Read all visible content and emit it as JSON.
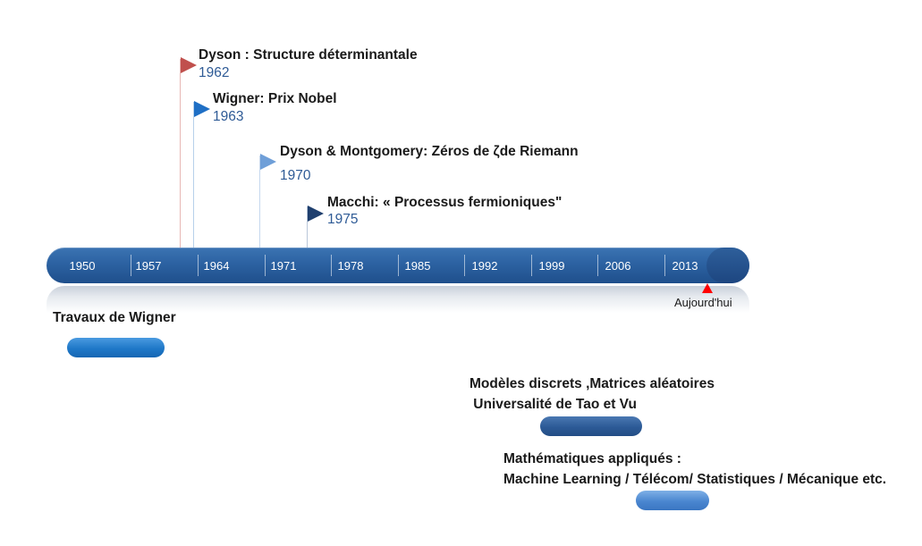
{
  "events": [
    {
      "title": "Dyson : Structure déterminantale",
      "year": "1962",
      "flag_color": "#c0504d"
    },
    {
      "title": "Wigner: Prix Nobel",
      "year": "1963",
      "flag_color": "#1f6fc5"
    },
    {
      "title": "Dyson & Montgomery: Zéros de ζde Riemann",
      "year": "1970",
      "flag_color": "#6f9fd8"
    },
    {
      "title": "Macchi: « Processus fermioniques\"",
      "year": "1975",
      "flag_color": "#1f3f6e"
    }
  ],
  "timeline": {
    "ticks": [
      "1950",
      "1957",
      "1964",
      "1971",
      "1978",
      "1985",
      "1992",
      "1999",
      "2006",
      "2013"
    ],
    "today_label": "Aujourd'hui",
    "bar_color": "#2c62a2",
    "today_marker_color": "#ff0000"
  },
  "periods": [
    {
      "lines": [
        "Travaux de Wigner"
      ],
      "pill_color": "#1f78c8"
    },
    {
      "lines": [
        "Modèles discrets ,Matrices aléatoires",
        " Universalité de Tao et Vu"
      ],
      "pill_color": "#2c5a96"
    },
    {
      "lines": [
        "Mathématiques appliqués :",
        "Machine Learning / Télécom/ Statistiques / Mécanique etc."
      ],
      "pill_color": "#4a86d0"
    }
  ]
}
